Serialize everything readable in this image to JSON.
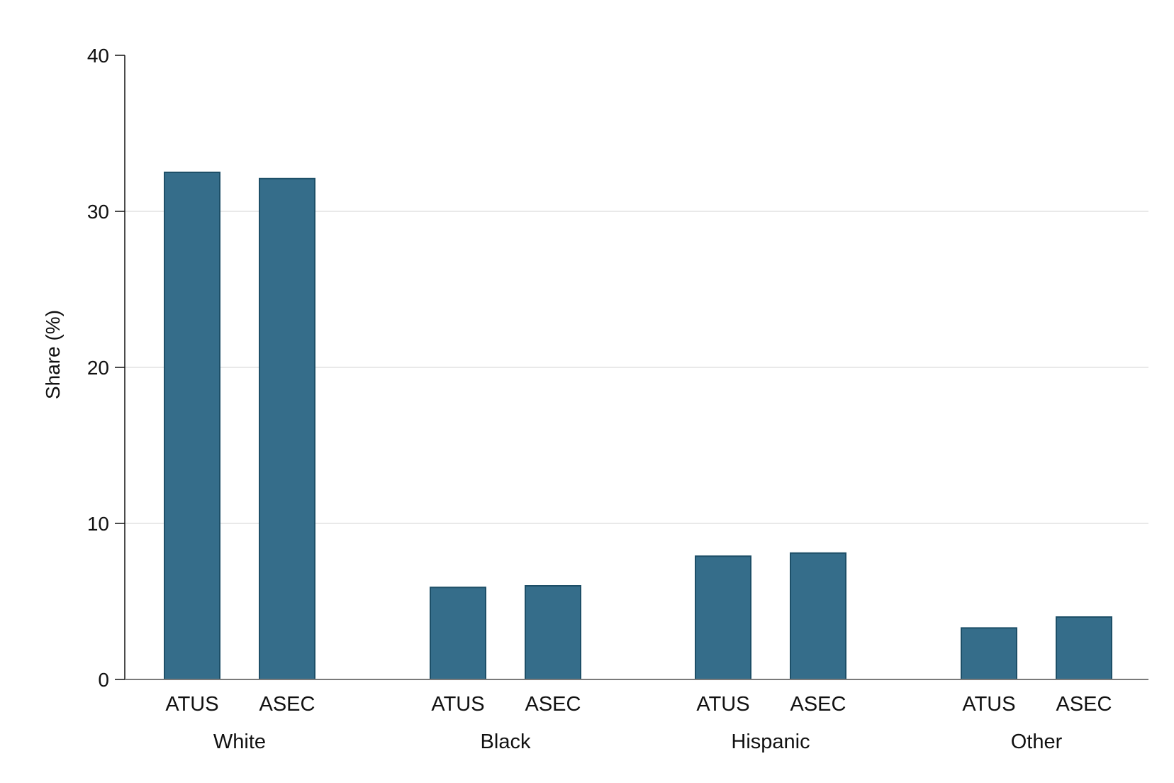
{
  "chart_data": {
    "type": "bar",
    "title": "",
    "xlabel": "",
    "ylabel": "Share (%)",
    "ylim": [
      0,
      40
    ],
    "yticks": [
      "0",
      "10",
      "20",
      "30",
      "40"
    ],
    "grid": true,
    "legend": "none",
    "bar_color": "#356d8a",
    "bar_edge_color": "#1d4f68",
    "groups": [
      {
        "label": "White",
        "bars": [
          {
            "label": "ATUS",
            "value": 32.5
          },
          {
            "label": "ASEC",
            "value": 32.1
          }
        ]
      },
      {
        "label": "Black",
        "bars": [
          {
            "label": "ATUS",
            "value": 5.9
          },
          {
            "label": "ASEC",
            "value": 6.0
          }
        ]
      },
      {
        "label": "Hispanic",
        "bars": [
          {
            "label": "ATUS",
            "value": 7.9
          },
          {
            "label": "ASEC",
            "value": 8.1
          }
        ]
      },
      {
        "label": "Other",
        "bars": [
          {
            "label": "ATUS",
            "value": 3.3
          },
          {
            "label": "ASEC",
            "value": 4.0
          }
        ]
      }
    ]
  }
}
